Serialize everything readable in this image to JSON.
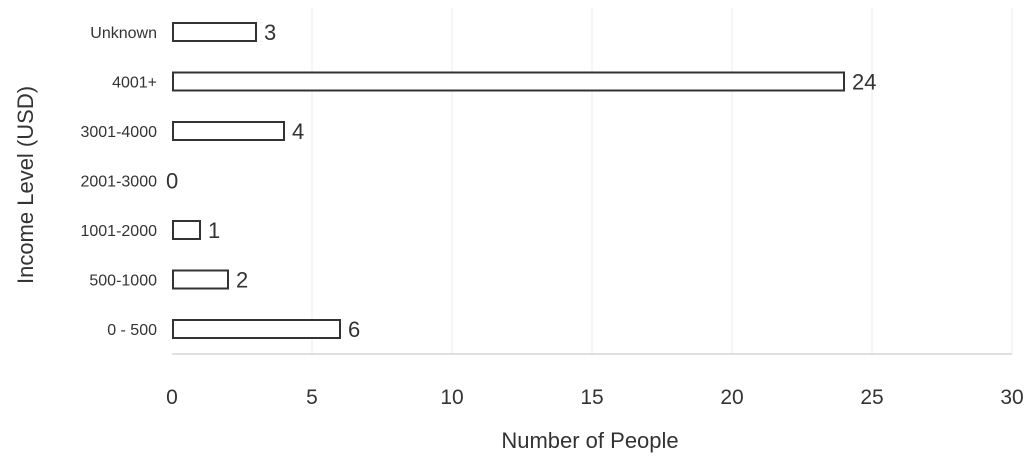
{
  "chart_data": {
    "type": "bar",
    "orientation": "horizontal",
    "categories": [
      "Unknown",
      "4001+",
      "3001-4000",
      "2001-3000",
      "1001-2000",
      "500-1000",
      "0 - 500"
    ],
    "values": [
      3,
      24,
      4,
      0,
      1,
      2,
      6
    ],
    "data_labels": [
      "3",
      "24",
      "4",
      "0",
      "1",
      "2",
      "6"
    ],
    "xlabel": "Number of People",
    "ylabel": "Income Level (USD)",
    "xlim": [
      0,
      30
    ],
    "xticks": [
      "0",
      "5",
      "10",
      "15",
      "20",
      "25",
      "30"
    ],
    "tick_values": [
      0,
      5,
      10,
      15,
      20,
      25,
      30
    ],
    "grid": true,
    "bar_color": "#ffffff",
    "bar_outline_color": "#333333"
  }
}
